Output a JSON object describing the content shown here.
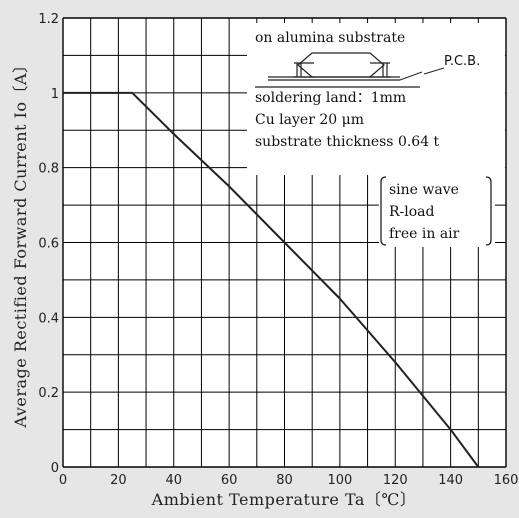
{
  "chart_data": {
    "type": "line",
    "xlabel": "Ambient Temperature Ta〔℃〕",
    "ylabel": "Average Rectified Forward Current Io〔A〕",
    "xlim": [
      0,
      160
    ],
    "ylim": [
      0,
      1.2
    ],
    "x_ticks": [
      "0",
      "20",
      "40",
      "60",
      "80",
      "100",
      "120",
      "140",
      "160"
    ],
    "y_ticks": [
      "0",
      "0.2",
      "0.4",
      "0.6",
      "0.8",
      "1",
      "1.2"
    ],
    "grid": true,
    "series": [
      {
        "x": [
          0,
          25,
          40,
          60,
          80,
          100,
          120,
          140,
          150
        ],
        "y": [
          1.0,
          1.0,
          0.89,
          0.75,
          0.6,
          0.45,
          0.28,
          0.1,
          0.0
        ]
      }
    ],
    "conditions_box": {
      "lines": [
        "on alumina substrate",
        "soldering land：1mm",
        "Cu layer 20 μm",
        "substrate thickness 0.64 t"
      ],
      "pcb_label": "P.C.B."
    },
    "notes_box": {
      "lines": [
        "sine wave",
        "R-load",
        "free in air"
      ]
    },
    "colors": {
      "background": "#e6e6e6",
      "plot_area": "#ffffff",
      "grid": "#000000",
      "line": "#222222"
    }
  }
}
